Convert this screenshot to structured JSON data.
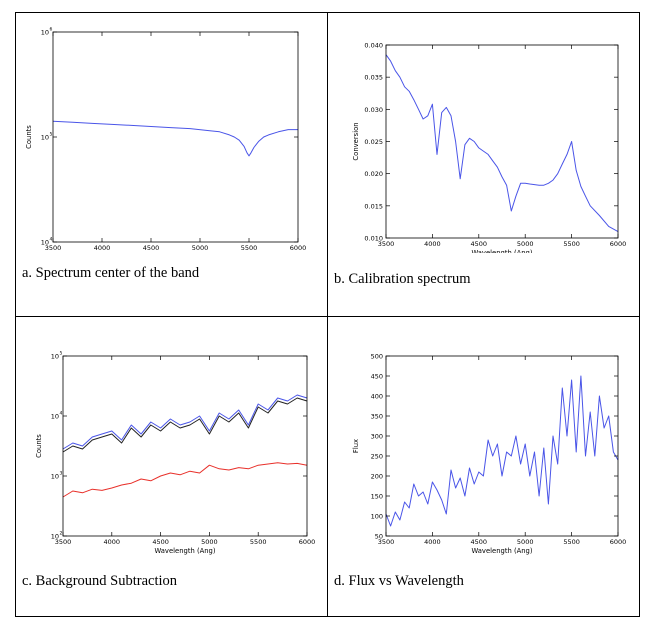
{
  "panels": [
    {
      "caption": "a. Spectrum center of the band",
      "chart_data": {
        "type": "line",
        "title": "",
        "xlabel": "Wavelength (Ang)",
        "ylabel": "Counts",
        "yscale": "log",
        "xlim": [
          3500,
          6000
        ],
        "ylim_exp": [
          4,
          6
        ],
        "xticks": [
          3500,
          4000,
          4500,
          5000,
          5500,
          6000
        ],
        "yticks": [
          {
            "exp": 4,
            "label": "10"
          },
          {
            "exp": 5,
            "label": "10"
          },
          {
            "exp": 6,
            "label": "10"
          }
        ],
        "series": [
          {
            "color": "#4a55e8",
            "x": [
              3500,
              3700,
              3900,
              4100,
              4300,
              4500,
              4700,
              4900,
              5100,
              5200,
              5300,
              5350,
              5400,
              5450,
              5480,
              5500,
              5520,
              5550,
              5600,
              5650,
              5700,
              5800,
              5900,
              6000
            ],
            "y_exp": [
              5.15,
              5.14,
              5.13,
              5.12,
              5.11,
              5.1,
              5.09,
              5.08,
              5.06,
              5.05,
              5.02,
              5.0,
              4.97,
              4.91,
              4.85,
              4.82,
              4.85,
              4.9,
              4.96,
              5.0,
              5.02,
              5.05,
              5.07,
              5.07
            ]
          }
        ]
      }
    },
    {
      "caption": "b. Calibration spectrum",
      "chart_data": {
        "type": "line",
        "title": "",
        "xlabel": "Wavelength (Ang)",
        "ylabel": "Conversion",
        "xlim": [
          3500,
          6000
        ],
        "ylim": [
          0.01,
          0.04
        ],
        "xticks": [
          3500,
          4000,
          4500,
          5000,
          5500,
          6000
        ],
        "yticks": [
          "0.010",
          "0.015",
          "0.020",
          "0.025",
          "0.030",
          "0.035",
          "0.040"
        ],
        "series": [
          {
            "color": "#4a55e8",
            "x": [
              3500,
              3550,
              3600,
              3650,
              3700,
              3750,
              3800,
              3850,
              3900,
              3950,
              4000,
              4050,
              4100,
              4150,
              4200,
              4250,
              4300,
              4350,
              4400,
              4450,
              4500,
              4550,
              4600,
              4650,
              4700,
              4750,
              4800,
              4850,
              4900,
              4950,
              5000,
              5050,
              5100,
              5150,
              5200,
              5250,
              5300,
              5350,
              5400,
              5450,
              5500,
              5550,
              5600,
              5650,
              5700,
              5800,
              5900,
              6000
            ],
            "y": [
              0.0385,
              0.0375,
              0.036,
              0.035,
              0.0335,
              0.0328,
              0.0315,
              0.03,
              0.0285,
              0.029,
              0.0308,
              0.023,
              0.0295,
              0.0303,
              0.029,
              0.025,
              0.0192,
              0.0245,
              0.0255,
              0.025,
              0.024,
              0.0235,
              0.023,
              0.022,
              0.021,
              0.0195,
              0.0182,
              0.0142,
              0.0165,
              0.0185,
              0.0185,
              0.0184,
              0.0183,
              0.0182,
              0.0182,
              0.0185,
              0.019,
              0.02,
              0.0215,
              0.023,
              0.025,
              0.0205,
              0.018,
              0.0165,
              0.015,
              0.0135,
              0.0118,
              0.011
            ]
          }
        ]
      }
    },
    {
      "caption": "c. Background Subtraction",
      "chart_data": {
        "type": "line",
        "title": "",
        "xlabel": "Wavelength (Ang)",
        "ylabel": "Counts",
        "yscale": "log",
        "xlim": [
          3500,
          6000
        ],
        "ylim_exp": [
          2,
          5
        ],
        "xticks": [
          3500,
          4000,
          4500,
          5000,
          5500,
          6000
        ],
        "yticks": [
          {
            "exp": 2,
            "label": "10"
          },
          {
            "exp": 3,
            "label": "10"
          },
          {
            "exp": 4,
            "label": "10"
          },
          {
            "exp": 5,
            "label": "10"
          }
        ],
        "series": [
          {
            "color": "#4a55e8",
            "x": [
              3500,
              3600,
              3700,
              3800,
              3900,
              4000,
              4100,
              4200,
              4300,
              4400,
              4500,
              4600,
              4700,
              4800,
              4900,
              5000,
              5100,
              5200,
              5300,
              5400,
              5500,
              5600,
              5700,
              5800,
              5900,
              6000
            ],
            "y_exp": [
              3.45,
              3.55,
              3.5,
              3.65,
              3.7,
              3.75,
              3.6,
              3.85,
              3.7,
              3.9,
              3.8,
              3.95,
              3.85,
              3.9,
              4.0,
              3.75,
              4.05,
              3.95,
              4.1,
              3.85,
              4.2,
              4.1,
              4.3,
              4.25,
              4.35,
              4.3
            ]
          },
          {
            "color": "#222222",
            "x": [
              3500,
              3600,
              3700,
              3800,
              3900,
              4000,
              4100,
              4200,
              4300,
              4400,
              4500,
              4600,
              4700,
              4800,
              4900,
              5000,
              5100,
              5200,
              5300,
              5400,
              5500,
              5600,
              5700,
              5800,
              5900,
              6000
            ],
            "y_exp": [
              3.4,
              3.5,
              3.45,
              3.6,
              3.65,
              3.7,
              3.55,
              3.8,
              3.65,
              3.85,
              3.75,
              3.9,
              3.8,
              3.85,
              3.95,
              3.7,
              4.0,
              3.9,
              4.05,
              3.8,
              4.15,
              4.05,
              4.25,
              4.2,
              4.3,
              4.25
            ]
          },
          {
            "color": "#e8302a",
            "x": [
              3500,
              3600,
              3700,
              3800,
              3900,
              4000,
              4100,
              4200,
              4300,
              4400,
              4500,
              4600,
              4700,
              4800,
              4900,
              5000,
              5100,
              5200,
              5300,
              5400,
              5500,
              5600,
              5700,
              5800,
              5900,
              6000
            ],
            "y_exp": [
              2.65,
              2.75,
              2.72,
              2.78,
              2.76,
              2.8,
              2.85,
              2.88,
              2.95,
              2.92,
              3.0,
              3.05,
              3.02,
              3.08,
              3.05,
              3.18,
              3.12,
              3.1,
              3.14,
              3.12,
              3.18,
              3.2,
              3.22,
              3.2,
              3.21,
              3.18
            ]
          }
        ]
      }
    },
    {
      "caption": "d. Flux vs Wavelength",
      "chart_data": {
        "type": "line",
        "title": "",
        "xlabel": "Wavelength (Ang)",
        "ylabel": "Flux",
        "xlim": [
          3500,
          6000
        ],
        "ylim": [
          50,
          500
        ],
        "xticks": [
          3500,
          4000,
          4500,
          5000,
          5500,
          6000
        ],
        "yticks": [
          "50",
          "100",
          "150",
          "200",
          "250",
          "300",
          "350",
          "400",
          "450",
          "500"
        ],
        "series": [
          {
            "color": "#4a55e8",
            "x": [
              3500,
              3550,
              3600,
              3650,
              3700,
              3750,
              3800,
              3850,
              3900,
              3950,
              4000,
              4050,
              4100,
              4150,
              4200,
              4250,
              4300,
              4350,
              4400,
              4450,
              4500,
              4550,
              4600,
              4650,
              4700,
              4750,
              4800,
              4850,
              4900,
              4950,
              5000,
              5050,
              5100,
              5150,
              5200,
              5250,
              5300,
              5350,
              5400,
              5450,
              5500,
              5550,
              5600,
              5650,
              5700,
              5750,
              5800,
              5850,
              5900,
              5950,
              6000
            ],
            "y": [
              105,
              75,
              110,
              90,
              135,
              120,
              180,
              150,
              160,
              130,
              185,
              165,
              140,
              105,
              215,
              170,
              195,
              150,
              220,
              180,
              210,
              200,
              290,
              250,
              280,
              200,
              260,
              250,
              300,
              230,
              280,
              200,
              260,
              150,
              270,
              130,
              300,
              230,
              420,
              300,
              440,
              260,
              450,
              250,
              360,
              250,
              400,
              320,
              350,
              260,
              240
            ]
          }
        ]
      }
    }
  ]
}
